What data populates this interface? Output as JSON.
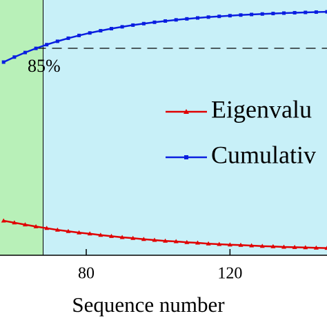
{
  "chart_data": {
    "type": "line",
    "x_label": "Sequence number",
    "x": [
      57,
      60,
      63,
      66,
      69,
      72,
      75,
      78,
      81,
      84,
      87,
      90,
      93,
      96,
      99,
      102,
      105,
      108,
      111,
      114,
      117,
      120,
      123,
      126,
      129,
      132,
      135,
      138,
      141,
      144,
      147
    ],
    "series": [
      {
        "name": "Eigenvalu",
        "color": "#e00000",
        "marker": "triangle",
        "values": [
          1.25,
          1.18,
          1.11,
          1.04,
          0.98,
          0.92,
          0.87,
          0.82,
          0.78,
          0.73,
          0.69,
          0.65,
          0.62,
          0.58,
          0.55,
          0.52,
          0.5,
          0.47,
          0.45,
          0.42,
          0.4,
          0.38,
          0.37,
          0.35,
          0.33,
          0.32,
          0.3,
          0.29,
          0.28,
          0.27,
          0.26
        ]
      },
      {
        "name": "Cumulativ",
        "color": "#0a1ee0",
        "marker": "square",
        "axis": "y2",
        "values": [
          82.0,
          83.09,
          84.08,
          84.98,
          85.79,
          86.52,
          87.19,
          87.79,
          88.34,
          88.82,
          89.27,
          89.67,
          90.04,
          90.36,
          90.66,
          90.93,
          91.18,
          91.4,
          91.6,
          91.78,
          91.94,
          92.09,
          92.23,
          92.35,
          92.46,
          92.56,
          92.65,
          92.73,
          92.8,
          92.87,
          92.93
        ]
      }
    ],
    "xlim": [
      56,
      147
    ],
    "xticks": [
      80,
      120
    ],
    "ylim": [
      0,
      10
    ],
    "y2lim": [
      40,
      100
    ],
    "threshold": {
      "x": 68,
      "y": 85,
      "label": "85%"
    },
    "background_color": "#c8f0f8",
    "highlight_color": "#b8f0b8"
  }
}
